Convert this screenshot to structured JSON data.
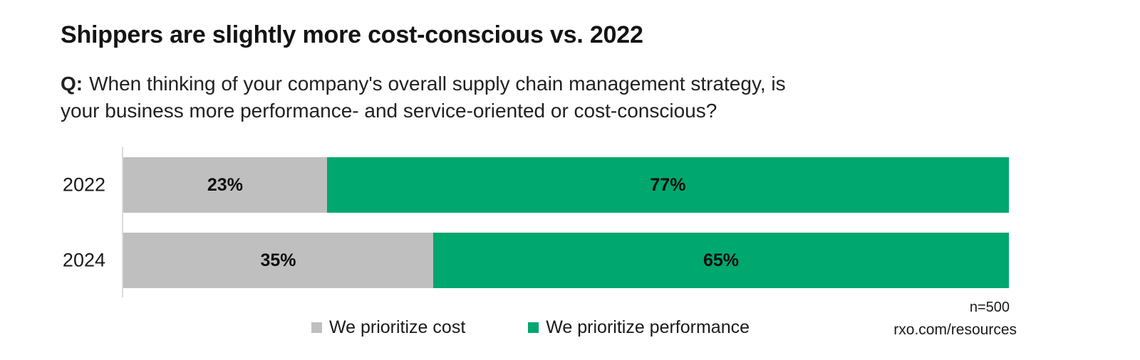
{
  "page": {
    "title": "Shippers are slightly more cost-conscious vs. 2022",
    "question_prefix": "Q:",
    "question_line1": "When thinking of your company's overall supply chain management strategy, is",
    "question_line2": "your business more performance- and service-oriented or cost-conscious?",
    "sample_size": "n=500",
    "source": "rxo.com/resources"
  },
  "chart_data": {
    "type": "bar",
    "orientation": "horizontal",
    "stacked": true,
    "title": "Shippers are slightly more cost-conscious vs. 2022",
    "categories": [
      "2022",
      "2024"
    ],
    "series": [
      {
        "name": "We prioritize cost",
        "values": [
          23,
          35
        ],
        "color": "#bfbfbf"
      },
      {
        "name": "We prioritize performance",
        "values": [
          77,
          65
        ],
        "color": "#00a76e"
      }
    ],
    "value_suffix": "%",
    "xlim": [
      0,
      100
    ],
    "grid": false,
    "legend_position": "bottom",
    "data_labels": "inside-center"
  },
  "colors": {
    "cost_gray": "#bfbfbf",
    "performance_green": "#00a76e",
    "axis_line": "#dbdbdb",
    "text": "#1a1a1a"
  }
}
